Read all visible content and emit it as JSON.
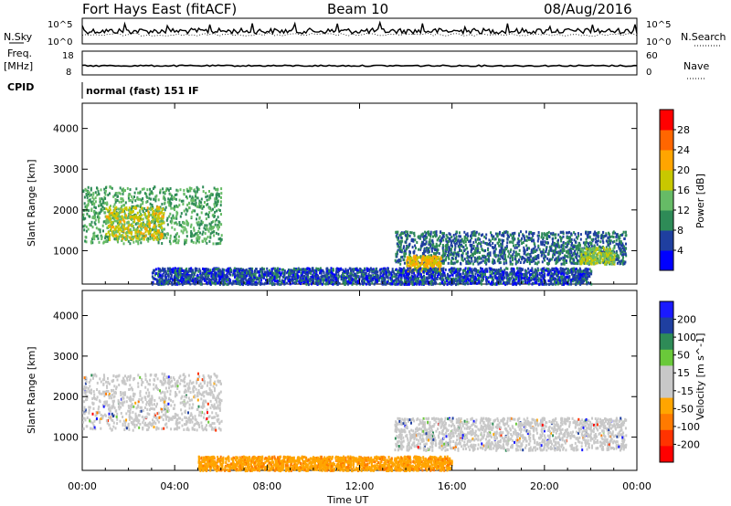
{
  "header": {
    "station": "Fort Hays East (fitACF)",
    "beam": "Beam 10",
    "date": "08/Aug/2016"
  },
  "top_panels": {
    "nsky_label": "N.Sky",
    "nsearch_label": "N.Search",
    "noise_ticks_left": [
      "10^5",
      "10^0"
    ],
    "noise_ticks_right": [
      "10^5",
      "10^0"
    ],
    "freq_label": "Freq.",
    "freq_unit": "[MHz]",
    "freq_ticks": [
      "18",
      "8"
    ],
    "nave_label": "Nave",
    "nave_ticks": [
      "60",
      "0"
    ],
    "cpid_label": "CPID",
    "cpid_text": "normal (fast) 151 IF"
  },
  "colors": {
    "power_scale": [
      "#0000ff",
      "#1f3fa0",
      "#2e8b57",
      "#66bb66",
      "#c8c800",
      "#ffa500",
      "#ff6600",
      "#ff0000"
    ],
    "velocity_scale": [
      "#1a1aff",
      "#1f3fa0",
      "#2e8b57",
      "#6ac93a",
      "#c8c8c8",
      "#c8c8c8",
      "#ffa500",
      "#ff7a00",
      "#ff3300",
      "#ff0000"
    ],
    "ground_scatter": "#c8c8c8"
  },
  "chart_data": [
    {
      "type": "heatmap",
      "name_printed": "",
      "ylabel": "Slant Range [km]",
      "xlabel": "",
      "x_ticks": [
        "00:00",
        "04:00",
        "08:00",
        "12:00",
        "16:00",
        "20:00",
        "00:00"
      ],
      "xlim_hours": [
        0,
        24
      ],
      "ylim_km": [
        180,
        4620
      ],
      "y_ticks": [
        "1000",
        "2000",
        "3000",
        "4000"
      ],
      "colorbar_label": "Power [dB]",
      "colorbar_ticks": [
        "4",
        "8",
        "12",
        "16",
        "20",
        "24",
        "28"
      ],
      "colorbar_range": [
        0,
        30
      ],
      "regions": [
        {
          "t0": 0.0,
          "t1": 6.0,
          "r0": 1200,
          "r1": 2600,
          "level": 12
        },
        {
          "t0": 1.0,
          "t1": 3.5,
          "r0": 1300,
          "r1": 2100,
          "level": 18
        },
        {
          "t0": 13.5,
          "t1": 23.5,
          "r0": 700,
          "r1": 1500,
          "level": 8
        },
        {
          "t0": 14.0,
          "t1": 15.5,
          "r0": 500,
          "r1": 900,
          "level": 20
        },
        {
          "t0": 21.5,
          "t1": 23.0,
          "r0": 700,
          "r1": 1100,
          "level": 16
        },
        {
          "t0": 3.0,
          "t1": 22.0,
          "r0": 200,
          "r1": 600,
          "level": 6
        }
      ]
    },
    {
      "type": "heatmap",
      "ylabel": "Slant Range [km]",
      "xlabel": "Time UT",
      "x_ticks": [
        "00:00",
        "04:00",
        "08:00",
        "12:00",
        "16:00",
        "20:00",
        "00:00"
      ],
      "xlim_hours": [
        0,
        24
      ],
      "ylim_km": [
        180,
        4620
      ],
      "y_ticks": [
        "1000",
        "2000",
        "3000",
        "4000"
      ],
      "colorbar_label": "Velocity [m s^-1]",
      "colorbar_ticks": [
        "200",
        "100",
        "50",
        "15",
        "-15",
        "-50",
        "-100",
        "-200"
      ],
      "regions": [
        {
          "t0": 0.0,
          "t1": 6.0,
          "r0": 1200,
          "r1": 2600,
          "velocity": 0
        },
        {
          "t0": 13.5,
          "t1": 23.5,
          "r0": 700,
          "r1": 1500,
          "velocity": 0
        },
        {
          "t0": 5.0,
          "t1": 16.0,
          "r0": 200,
          "r1": 550,
          "velocity": -60
        }
      ]
    }
  ]
}
